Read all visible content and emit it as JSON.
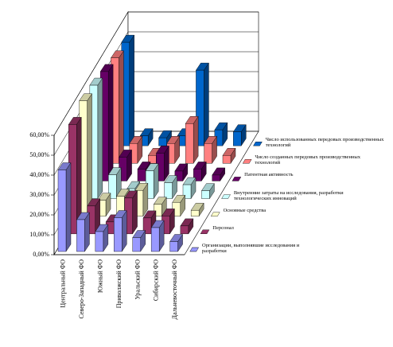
{
  "chart_data": {
    "type": "bar3d",
    "categories": [
      "Центральный ФО",
      "Северо-Западный ФО",
      "Южный ФО",
      "Приволжский ФО",
      "Уральский ФО",
      "Сибирский ФО",
      "Дальневосточный ФО"
    ],
    "series": [
      {
        "name": "Организации, выполнявшие исследования и разработки",
        "color": "#9999ff",
        "values": [
          41,
          16,
          10,
          17,
          7,
          12,
          5
        ]
      },
      {
        "name": "Персонал",
        "color": "#993366",
        "values": [
          55,
          14,
          6,
          18,
          8,
          9,
          4
        ]
      },
      {
        "name": "Основные средства",
        "color": "#ffffcc",
        "values": [
          58,
          8,
          10,
          13,
          6,
          7,
          3
        ]
      },
      {
        "name": "Внутренние затраты на исследования, разработки технологических инноваций",
        "color": "#ccffff",
        "values": [
          57,
          12,
          5,
          14,
          8,
          7,
          4
        ]
      },
      {
        "name": "Патентная активность",
        "color": "#660066",
        "values": [
          55,
          12,
          6,
          14,
          5,
          6,
          3
        ]
      },
      {
        "name": "Число созданных передовых производственных технологий",
        "color": "#ff8080",
        "values": [
          53,
          10,
          4,
          10,
          20,
          10,
          4
        ]
      },
      {
        "name": "Число использованных передовых производственных технологий",
        "color": "#0066cc",
        "values": [
          52,
          5,
          4,
          5,
          38,
          8,
          7
        ]
      }
    ],
    "ylim": [
      0,
      60
    ],
    "yticks": [
      {
        "value": 0,
        "label": "0,00%"
      },
      {
        "value": 10,
        "label": "10,00%"
      },
      {
        "value": 20,
        "label": "20,00%"
      },
      {
        "value": 30,
        "label": "30,00%"
      },
      {
        "value": 40,
        "label": "40,00%"
      },
      {
        "value": 50,
        "label": "50,00%"
      },
      {
        "value": 60,
        "label": "60,00%"
      }
    ],
    "grid": true
  }
}
